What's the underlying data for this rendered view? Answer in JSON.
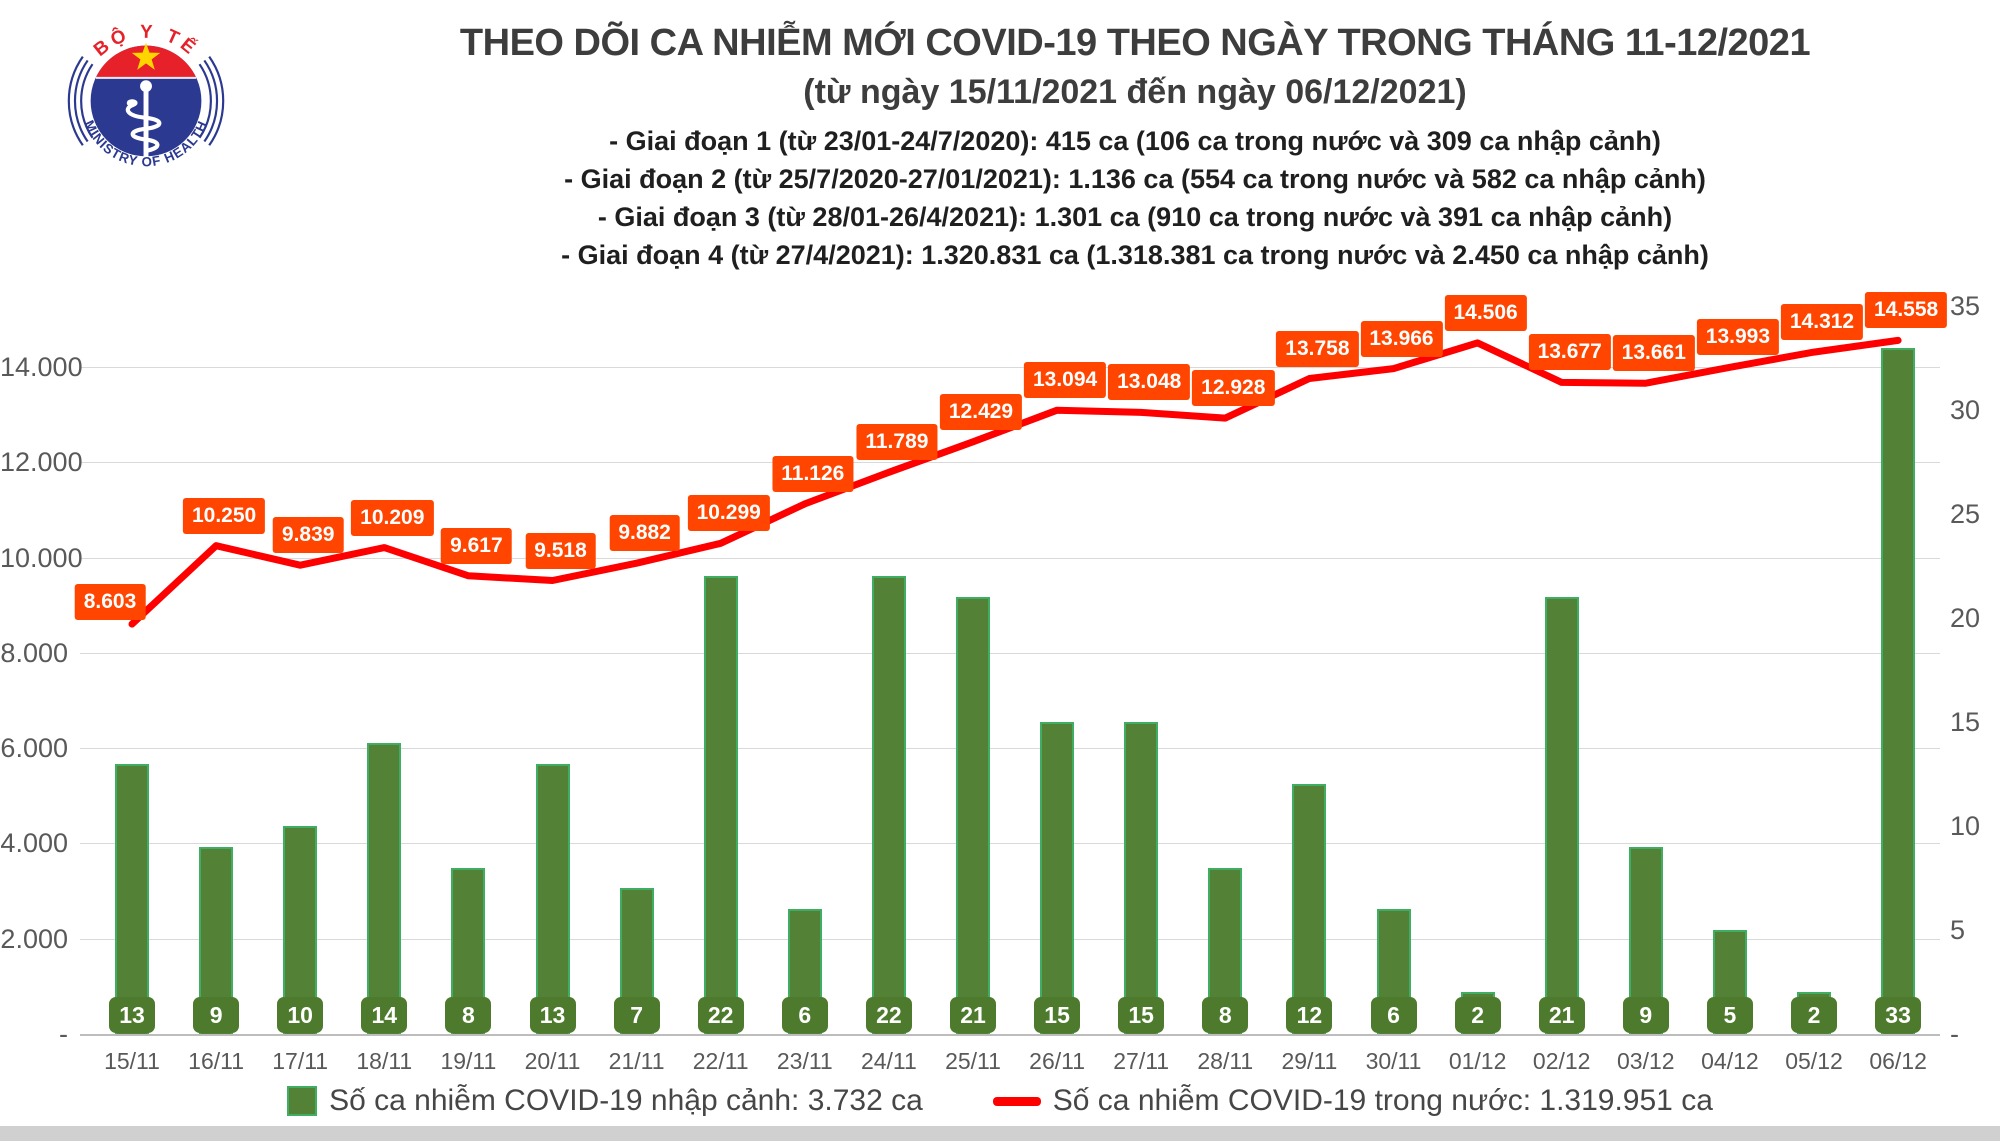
{
  "logo": {
    "top_text": "BỘ Y TẾ",
    "bottom_text": "MINISTRY OF HEALTH"
  },
  "header": {
    "title": "THEO DÕI CA NHIỄM MỚI COVID-19 THEO NGÀY TRONG THÁNG 11-12/2021",
    "subtitle": "(từ ngày 15/11/2021 đến ngày 06/12/2021)",
    "phases": [
      "- Giai đoạn 1 (từ 23/01-24/7/2020): 415 ca (106 ca trong nước và 309 ca nhập cảnh)",
      "- Giai đoạn 2 (từ 25/7/2020-27/01/2021): 1.136 ca (554 ca trong nước và 582 ca nhập cảnh)",
      "- Giai đoạn 3 (từ 28/01-26/4/2021): 1.301 ca (910 ca trong nước và 391 ca nhập cảnh)",
      "- Giai đoạn 4 (từ 27/4/2021): 1.320.831 ca (1.318.381 ca trong nước và 2.450 ca nhập cảnh)"
    ]
  },
  "chart_data": {
    "type": "bar+line",
    "title": "THEO DÕI CA NHIỄM MỚI COVID-19 THEO NGÀY TRONG THÁNG 11-12/2021",
    "categories": [
      "15/11",
      "16/11",
      "17/11",
      "18/11",
      "19/11",
      "20/11",
      "21/11",
      "22/11",
      "23/11",
      "24/11",
      "25/11",
      "26/11",
      "27/11",
      "28/11",
      "29/11",
      "30/11",
      "01/12",
      "02/12",
      "03/12",
      "04/12",
      "05/12",
      "06/12"
    ],
    "series": [
      {
        "name": "Số ca nhiễm COVID-19 nhập cảnh",
        "type": "bar",
        "axis": "right",
        "color": "#538135",
        "values": [
          13,
          9,
          10,
          14,
          8,
          13,
          7,
          22,
          6,
          22,
          21,
          15,
          15,
          8,
          12,
          6,
          2,
          21,
          9,
          5,
          2,
          33
        ]
      },
      {
        "name": "Số ca nhiễm COVID-19 trong nước",
        "type": "line",
        "axis": "left",
        "color": "#fe0000",
        "label_bg": "#ff4500",
        "values": [
          8603,
          10250,
          9839,
          10209,
          9617,
          9518,
          9882,
          10299,
          11126,
          11789,
          12429,
          13094,
          13048,
          12928,
          13758,
          13966,
          14506,
          13677,
          13661,
          13993,
          14312,
          14558
        ],
        "labels": [
          "8.603",
          "10.250",
          "9.839",
          "10.209",
          "9.617",
          "9.518",
          "9.882",
          "10.299",
          "11.126",
          "11.789",
          "12.429",
          "13.094",
          "13.048",
          "12.928",
          "13.758",
          "13.966",
          "14.506",
          "13.677",
          "13.661",
          "13.993",
          "14.312",
          "14.558"
        ]
      }
    ],
    "left_axis": {
      "max": 14000,
      "ticks": [
        "14.000",
        "12.000",
        "10.000",
        "8.000",
        "6.000",
        "4.000",
        "2.000",
        "-"
      ],
      "tick_values": [
        14000,
        12000,
        10000,
        8000,
        6000,
        4000,
        2000,
        0
      ]
    },
    "right_axis": {
      "max": 35,
      "ticks": [
        "35",
        "30",
        "25",
        "20",
        "15",
        "10",
        "5",
        "-"
      ],
      "tick_values": [
        35,
        30,
        25,
        20,
        15,
        10,
        5,
        0
      ]
    },
    "grid": true,
    "legend_position": "bottom"
  },
  "legend": {
    "items": [
      {
        "label": "Số ca nhiễm COVID-19 nhập cảnh: 3.732 ca",
        "marker": "green-square"
      },
      {
        "label": "Số ca nhiễm COVID-19 trong nước: 1.319.951 ca",
        "marker": "red-line"
      }
    ]
  }
}
